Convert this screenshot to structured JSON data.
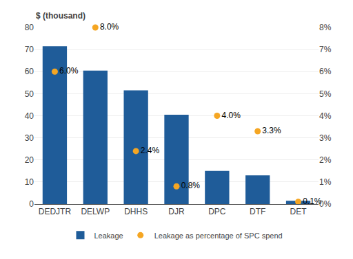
{
  "chart_data": {
    "type": "bar",
    "ylabel": "$ (thousand)",
    "categories": [
      "DEDJTR",
      "DELWP",
      "DHHS",
      "DJR",
      "DPC",
      "DTF",
      "DET"
    ],
    "series": [
      {
        "name": "Leakage",
        "type": "bar",
        "color": "#1F5C99",
        "values": [
          71.5,
          60.5,
          51.5,
          40.5,
          15,
          13,
          1.5
        ]
      },
      {
        "name": "Leakage as percentage of SPC spend",
        "type": "scatter",
        "axis": "y2",
        "color": "#F5A623",
        "marker": "circle",
        "data_labels": true,
        "values": [
          6.0,
          8.0,
          2.4,
          0.8,
          4.0,
          3.3,
          0.1
        ],
        "value_labels": [
          "6.0%",
          "8.0%",
          "2.4%",
          "0.8%",
          "4.0%",
          "3.3%",
          "0.1%"
        ]
      }
    ],
    "ylim": [
      0,
      80
    ],
    "yticks": [
      0,
      10,
      20,
      30,
      40,
      50,
      60,
      70,
      80
    ],
    "y2lim": [
      0,
      8
    ],
    "y2ticks": [
      {
        "value": 0,
        "label": "0%"
      },
      {
        "value": 1,
        "label": "1%"
      },
      {
        "value": 2,
        "label": "2%"
      },
      {
        "value": 3,
        "label": "3%"
      },
      {
        "value": 4,
        "label": "4%"
      },
      {
        "value": 5,
        "label": "5%"
      },
      {
        "value": 6,
        "label": "6%"
      },
      {
        "value": 7,
        "label": "7%"
      },
      {
        "value": 8,
        "label": "8%"
      }
    ],
    "grid": true,
    "legend": "bottom"
  }
}
